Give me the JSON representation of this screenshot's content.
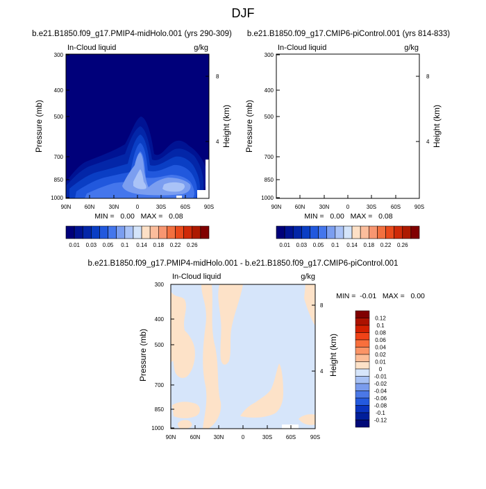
{
  "figure": {
    "title": "DJF",
    "stats_format_note": "MIN/MAX text as printed"
  },
  "chart_data": [
    {
      "type": "heatmap",
      "case_label": "b.e21.B1850.f09_g17.PMIP4-midHolo.001 (yrs 290-309)",
      "variable": "In-Cloud liquid",
      "units": "g/kg",
      "xlabel": "",
      "ylabel": "Pressure (mb)",
      "ylabel_right": "Height (km)",
      "x_ticks": [
        "90N",
        "60N",
        "30N",
        "0",
        "30S",
        "60S",
        "90S"
      ],
      "y_ticks": [
        "300",
        "400",
        "500",
        "700",
        "850",
        "1000"
      ],
      "height_ticks": [
        "8",
        "4"
      ],
      "xlim": [
        90,
        -90
      ],
      "ylim": [
        1000,
        300
      ],
      "min": 0.0,
      "max": 0.08,
      "stats_text": "MIN =   0.00   MAX =   0.08",
      "levels": [
        0.01,
        0.02,
        0.03,
        0.04,
        0.05,
        0.06,
        0.1,
        0.12,
        0.14,
        0.16,
        0.18,
        0.2,
        0.22,
        0.24,
        0.26
      ],
      "colorbar_labels": [
        "0.01",
        "0.03",
        "0.05",
        "0.1",
        "0.14",
        "0.18",
        "0.22",
        "0.26"
      ]
    },
    {
      "type": "heatmap",
      "case_label": "b.e21.B1850.f09_g17.CMIP6-piControl.001 (yrs 814-833)",
      "variable": "In-Cloud liquid",
      "units": "g/kg",
      "xlabel": "",
      "ylabel": "Pressure (mb)",
      "ylabel_right": "Height (km)",
      "x_ticks": [
        "90N",
        "60N",
        "30N",
        "0",
        "30S",
        "60S",
        "90S"
      ],
      "y_ticks": [
        "300",
        "400",
        "500",
        "700",
        "850",
        "1000"
      ],
      "height_ticks": [
        "8",
        "4"
      ],
      "xlim": [
        90,
        -90
      ],
      "ylim": [
        1000,
        300
      ],
      "min": 0.0,
      "max": 0.08,
      "stats_text": "MIN =   0.00   MAX =   0.08",
      "levels": [
        0.01,
        0.02,
        0.03,
        0.04,
        0.05,
        0.06,
        0.1,
        0.12,
        0.14,
        0.16,
        0.18,
        0.2,
        0.22,
        0.24,
        0.26
      ],
      "colorbar_labels": [
        "0.01",
        "0.03",
        "0.05",
        "0.1",
        "0.14",
        "0.18",
        "0.22",
        "0.26"
      ]
    },
    {
      "type": "heatmap",
      "case_label": "b.e21.B1850.f09_g17.PMIP4-midHolo.001 - b.e21.B1850.f09_g17.CMIP6-piControl.001",
      "variable": "In-Cloud liquid",
      "units": "g/kg",
      "xlabel": "",
      "ylabel": "Pressure (mb)",
      "ylabel_right": "Height (km)",
      "x_ticks": [
        "90N",
        "60N",
        "30N",
        "0",
        "30S",
        "60S",
        "90S"
      ],
      "y_ticks": [
        "300",
        "400",
        "500",
        "700",
        "850",
        "1000"
      ],
      "height_ticks": [
        "8",
        "4"
      ],
      "xlim": [
        90,
        -90
      ],
      "ylim": [
        1000,
        300
      ],
      "min": -0.01,
      "max": 0.0,
      "stats_text": "MIN =  -0.01   MAX =   0.00",
      "levels": [
        0.12,
        0.1,
        0.08,
        0.06,
        0.04,
        0.02,
        0.01,
        0,
        -0.01,
        -0.02,
        -0.04,
        -0.06,
        -0.08,
        -0.1,
        -0.12
      ],
      "colorbar_labels": [
        "0.12",
        "0.1",
        "0.08",
        "0.06",
        "0.04",
        "0.02",
        "0.01",
        "0",
        "-0.01",
        "-0.02",
        "-0.04",
        "-0.06",
        "-0.08",
        "-0.1",
        "-0.12"
      ]
    }
  ],
  "colors": {
    "background": "#ffffff",
    "blues": [
      "#00007a",
      "#001393",
      "#0326a8",
      "#0a3ec4",
      "#2158dd",
      "#4476ec",
      "#7b9ef0",
      "#aac3f7",
      "#d4e4fa"
    ],
    "reds": [
      "#fde0c6",
      "#fbbd9c",
      "#f79671",
      "#f2703f",
      "#e94a1b",
      "#cf2a08",
      "#ad1a00",
      "#800000"
    ],
    "diff_bar": [
      "#800000",
      "#ad1200",
      "#d32000",
      "#f04318",
      "#f86f3c",
      "#fb9466",
      "#fcbd97",
      "#fde2c8",
      "#d6e5fa",
      "#a7c1f4",
      "#7a9ced",
      "#4b78e6",
      "#245adf",
      "#0a34bf",
      "#001f9a",
      "#000a78"
    ]
  }
}
